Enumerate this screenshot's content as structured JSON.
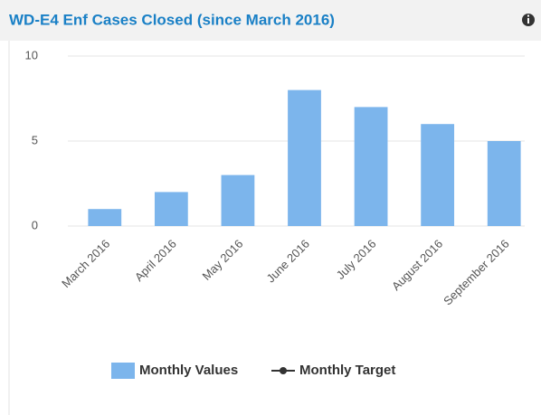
{
  "chart_data": {
    "type": "bar",
    "title": "WD-E4 Enf Cases Closed (since March 2016)",
    "categories": [
      "March 2016",
      "April 2016",
      "May 2016",
      "June 2016",
      "July 2016",
      "August 2016",
      "September 2016"
    ],
    "series": [
      {
        "name": "Monthly Values",
        "color": "#7cb5ec",
        "values": [
          1,
          2,
          3,
          8,
          7,
          6,
          5
        ]
      },
      {
        "name": "Monthly Target",
        "color": "#333333",
        "values": [
          null,
          null,
          null,
          null,
          null,
          null,
          null
        ]
      }
    ],
    "ylim": [
      0,
      10
    ],
    "yticks": [
      0,
      5,
      10
    ],
    "grid": true,
    "legend": "bottom"
  }
}
